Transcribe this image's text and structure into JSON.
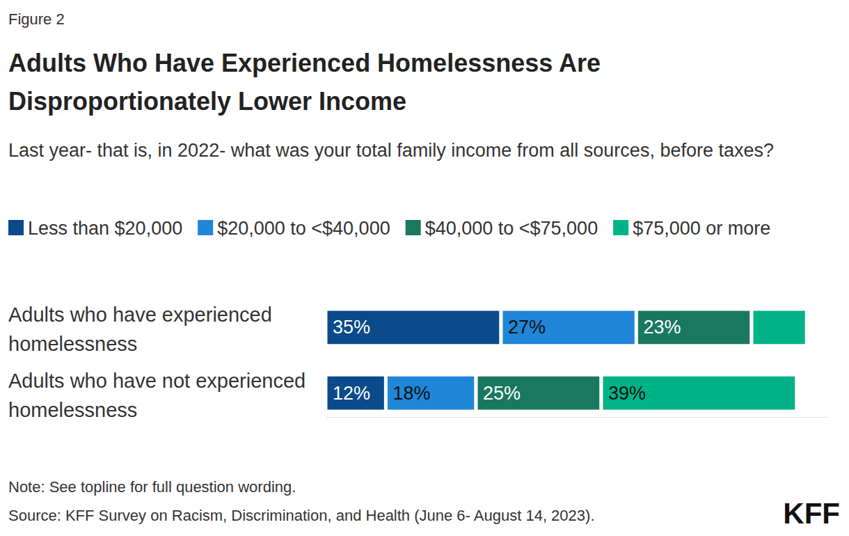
{
  "chart_data": {
    "type": "bar",
    "orientation": "horizontal",
    "stacked": true,
    "data_labels": true,
    "tick_labels": "y",
    "grid": false,
    "legend": "top",
    "figure_label": "Figure 2",
    "title": "Adults Who Have Experienced Homelessness Are Disproportionately Lower Income",
    "subtitle": "Last year- that is, in 2022- what was your total family income from all sources, before taxes?",
    "note": "Note: See topline for full question wording.",
    "source": "Source: KFF Survey on Racism, Discrimination, and Health (June 6- August 14, 2023).",
    "logo": "KFF",
    "categories": [
      "Adults who have experienced homelessness",
      "Adults who have not experienced homelessness"
    ],
    "xlim": [
      0,
      100
    ],
    "xticks": [],
    "series": [
      {
        "name": "Less than $20,000",
        "color": "#0b4a8b",
        "values": [
          35,
          12
        ],
        "value_labels": [
          "35%",
          "12%"
        ]
      },
      {
        "name": "$20,000 to <$40,000",
        "color": "#1f86d8",
        "values": [
          27,
          18
        ],
        "value_labels": [
          "27%",
          "18%"
        ]
      },
      {
        "name": "$40,000 to <$75,000",
        "color": "#1a7861",
        "values": [
          23,
          25
        ],
        "value_labels": [
          "23%",
          "25%"
        ]
      },
      {
        "name": "$75,000 or more",
        "color": "#00b386",
        "values": [
          11,
          39
        ],
        "value_labels": [
          null,
          "39%"
        ]
      }
    ]
  }
}
